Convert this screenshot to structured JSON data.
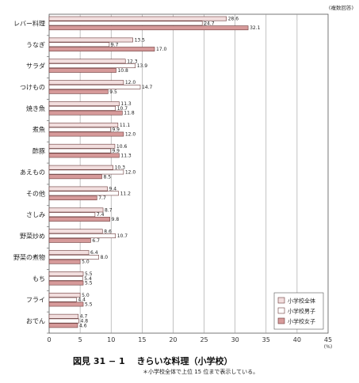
{
  "chart_data": {
    "type": "bar",
    "orientation": "horizontal",
    "unit_note": "(複数回答)",
    "xunit": "(%)",
    "xlim": [
      0,
      45
    ],
    "xticks": [
      0,
      5,
      10,
      15,
      20,
      25,
      30,
      35,
      40,
      45
    ],
    "grid": true,
    "legend_position": "bottom-right",
    "categories": [
      "レバー料理",
      "うなぎ",
      "サラダ",
      "つけもの",
      "焼き魚",
      "煮魚",
      "酢豚",
      "あえもの",
      "その他",
      "さしみ",
      "野菜炒め",
      "野菜の煮物",
      "もち",
      "フライ",
      "おでん"
    ],
    "series": [
      {
        "name": "小学校全体",
        "color": "#f2dede",
        "values": [
          28.6,
          13.5,
          12.3,
          12.0,
          11.3,
          11.1,
          10.6,
          10.3,
          9.4,
          8.7,
          8.6,
          6.4,
          5.5,
          5.0,
          4.7
        ]
      },
      {
        "name": "小学校男子",
        "color": "#ffffff",
        "values": [
          24.7,
          9.7,
          13.9,
          14.7,
          10.7,
          9.9,
          9.9,
          12.0,
          11.2,
          7.4,
          10.7,
          8.0,
          5.4,
          4.4,
          4.8
        ]
      },
      {
        "name": "小学校女子",
        "color": "#d69a9a",
        "values": [
          32.1,
          17.0,
          10.8,
          9.5,
          11.8,
          12.0,
          11.3,
          8.5,
          7.7,
          9.8,
          6.7,
          5.0,
          5.5,
          5.5,
          4.6
        ]
      }
    ]
  },
  "caption": {
    "title": "図見 31 − 1　 きらいな料理（小学校）",
    "note": "＊小学校全体で上位 15 位まで表示している。"
  }
}
